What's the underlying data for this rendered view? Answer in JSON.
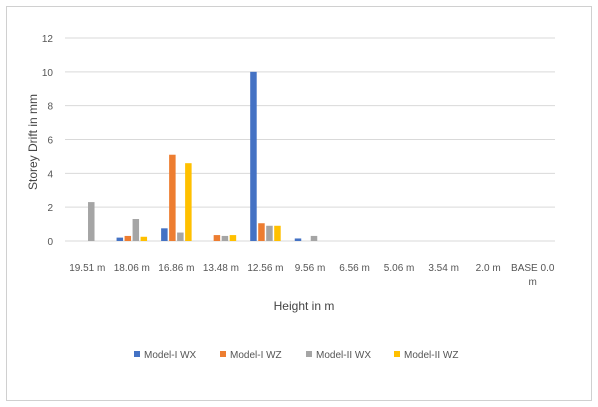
{
  "chart_data": {
    "type": "bar",
    "title": "",
    "xlabel": "Height in m",
    "ylabel": "Storey Drift in mm",
    "ylim": [
      0,
      12
    ],
    "yticks": [
      0,
      2,
      4,
      6,
      8,
      10,
      12
    ],
    "grid": true,
    "legend_position": "bottom",
    "categories": [
      "19.51 m",
      "18.06 m",
      "16.86 m",
      "13.48 m",
      "12.56 m",
      "9.56 m",
      "6.56 m",
      "5.06 m",
      "3.54 m",
      "2.0 m",
      "BASE 0.0 m"
    ],
    "series": [
      {
        "name": "Model-I WX",
        "color": "#4472C4",
        "values": [
          0,
          0.2,
          0.75,
          0,
          10,
          0.15,
          0,
          0,
          0,
          0,
          0
        ]
      },
      {
        "name": "Model-I WZ",
        "color": "#ED7D31",
        "values": [
          0,
          0.3,
          5.1,
          0.35,
          1.05,
          0,
          0,
          0,
          0,
          0,
          0
        ]
      },
      {
        "name": "Model-II WX",
        "color": "#A5A5A5",
        "values": [
          2.3,
          1.3,
          0.5,
          0.3,
          0.9,
          0.3,
          0,
          0,
          0,
          0,
          0
        ]
      },
      {
        "name": "Model-II WZ",
        "color": "#FFC000",
        "values": [
          0,
          0.25,
          4.6,
          0.35,
          0.9,
          0,
          0,
          0,
          0,
          0,
          0
        ]
      }
    ]
  }
}
